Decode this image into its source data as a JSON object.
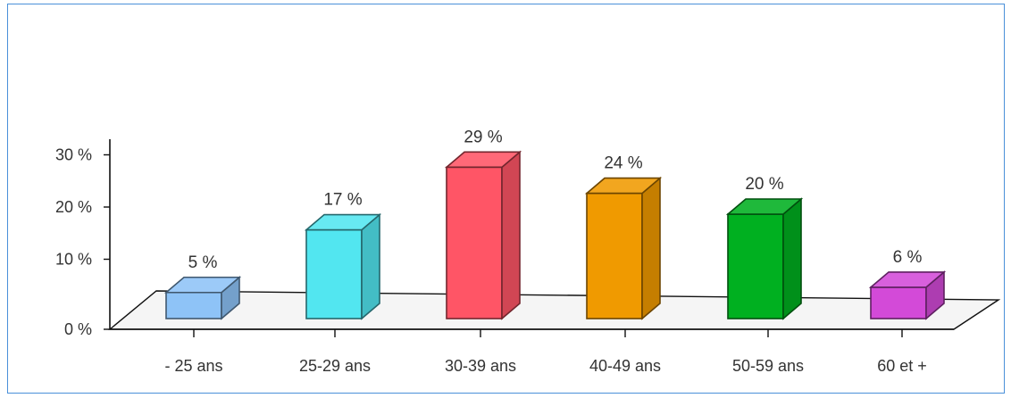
{
  "chart_data": {
    "type": "bar",
    "title": "",
    "xlabel": "",
    "ylabel": "",
    "categories": [
      "- 25 ans",
      "25-29 ans",
      "30-39 ans",
      "40-49 ans",
      "50-59 ans",
      "60 et +"
    ],
    "values": [
      5,
      17,
      29,
      24,
      20,
      6
    ],
    "value_labels": [
      "5 %",
      "17 %",
      "29 %",
      "24 %",
      "20 %",
      "6 %"
    ],
    "ylim": [
      0,
      30
    ],
    "yticks": [
      0,
      10,
      20,
      30
    ],
    "ytick_labels": [
      "0 %",
      "10 %",
      "20 %",
      "30 %"
    ],
    "three_d": true,
    "grid": false,
    "legend": "none",
    "colors": [
      "#8ec3f7",
      "#52e6f0",
      "#ff5566",
      "#f09a00",
      "#00b020",
      "#d34ad8"
    ]
  }
}
